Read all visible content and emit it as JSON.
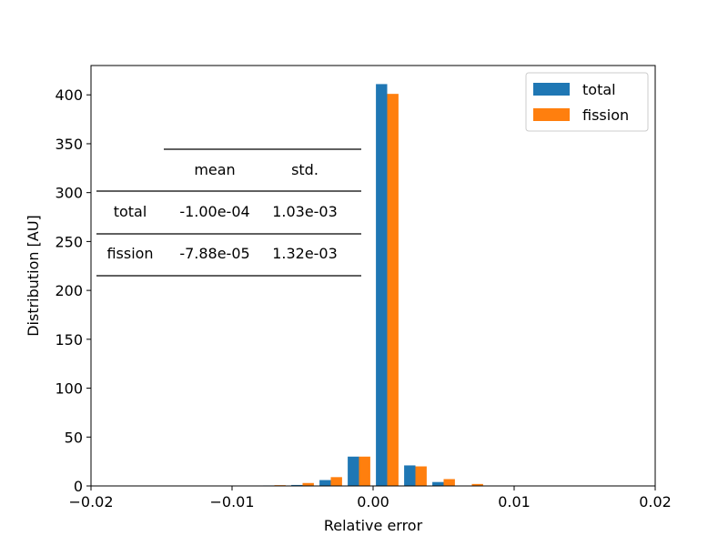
{
  "chart_data": {
    "type": "bar",
    "title": "",
    "xlabel": "Relative error",
    "ylabel": "Distribution [AU]",
    "xlim": [
      -0.02,
      0.02
    ],
    "ylim": [
      0,
      430
    ],
    "xticks": [
      {
        "value": -0.02,
        "label": "−0.02"
      },
      {
        "value": -0.01,
        "label": "−0.01"
      },
      {
        "value": 0.0,
        "label": "0.00"
      },
      {
        "value": 0.01,
        "label": "0.01"
      },
      {
        "value": 0.02,
        "label": "0.02"
      }
    ],
    "yticks": [
      {
        "value": 0,
        "label": "0"
      },
      {
        "value": 50,
        "label": "50"
      },
      {
        "value": 100,
        "label": "100"
      },
      {
        "value": 150,
        "label": "150"
      },
      {
        "value": 200,
        "label": "200"
      },
      {
        "value": 250,
        "label": "250"
      },
      {
        "value": 300,
        "label": "300"
      },
      {
        "value": 350,
        "label": "350"
      },
      {
        "value": 400,
        "label": "400"
      }
    ],
    "bin_edges": [
      -0.02,
      -0.018,
      -0.016,
      -0.014,
      -0.012,
      -0.01,
      -0.008,
      -0.006,
      -0.004,
      -0.002,
      0.0,
      0.002,
      0.004,
      0.006,
      0.008,
      0.01,
      0.012,
      0.014,
      0.016,
      0.018,
      0.02
    ],
    "series": [
      {
        "name": "total",
        "color": "#1f77b4",
        "values": [
          0,
          0,
          0,
          0,
          0,
          0,
          0.5,
          1,
          6,
          30,
          411,
          21,
          4,
          0,
          0,
          0,
          0,
          0,
          0,
          0
        ]
      },
      {
        "name": "fission",
        "color": "#ff7f0e",
        "values": [
          0,
          0,
          0,
          0,
          0,
          0.3,
          0.8,
          3,
          9,
          30,
          401,
          20,
          7,
          2,
          0,
          0,
          0,
          0,
          0,
          0
        ]
      }
    ],
    "legend_position": "top-right",
    "grid": false,
    "stats_table": {
      "headers": [
        "",
        "mean",
        "std."
      ],
      "rows": [
        [
          "total",
          "-1.00e-04",
          "1.03e-03"
        ],
        [
          "fission",
          "-7.88e-05",
          "1.32e-03"
        ]
      ]
    }
  }
}
